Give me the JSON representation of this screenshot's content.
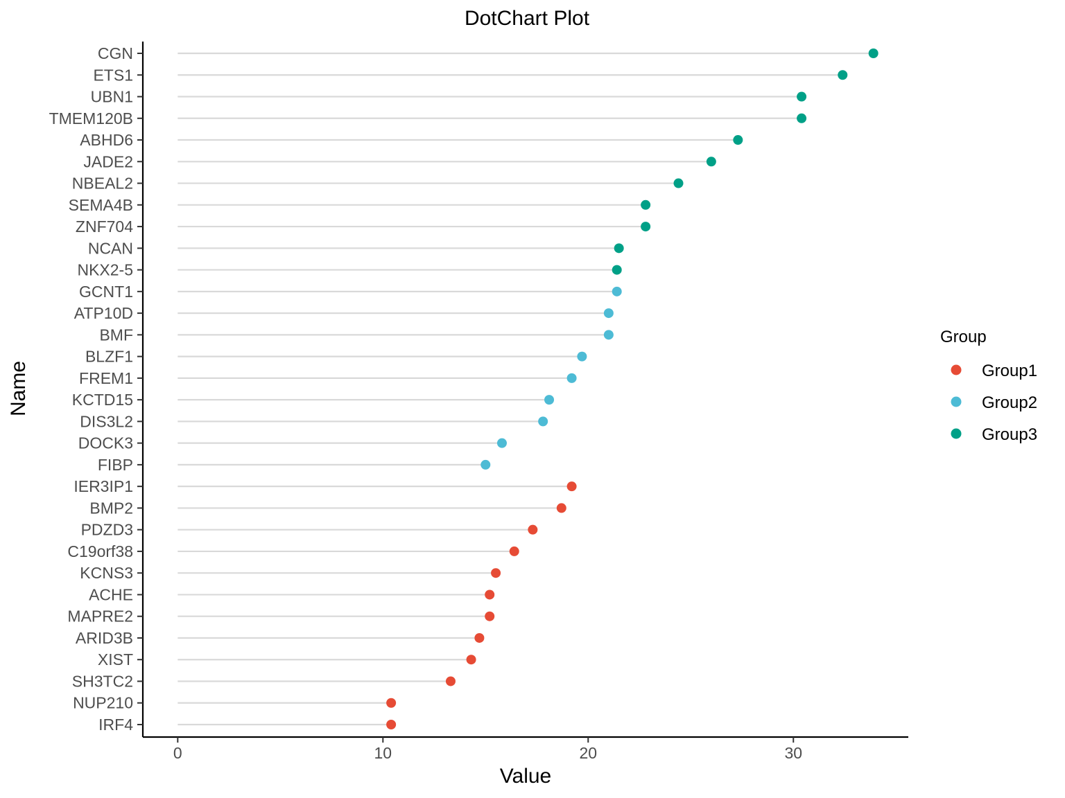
{
  "chart_data": {
    "type": "scatter",
    "title": "DotChart Plot",
    "xlabel": "Value",
    "ylabel": "Name",
    "xlim": [
      -1.7,
      35.6
    ],
    "x_ticks": [
      0,
      10,
      20,
      30
    ],
    "grid": false,
    "legend": {
      "title": "Group",
      "position": "right",
      "entries": [
        {
          "name": "Group1",
          "color": "#E64B35"
        },
        {
          "name": "Group2",
          "color": "#4DBBD5"
        },
        {
          "name": "Group3",
          "color": "#00A087"
        }
      ]
    },
    "segment_color": "#d9d9d9",
    "points": [
      {
        "name": "CGN",
        "value": 33.9,
        "group": "Group3"
      },
      {
        "name": "ETS1",
        "value": 32.4,
        "group": "Group3"
      },
      {
        "name": "UBN1",
        "value": 30.4,
        "group": "Group3"
      },
      {
        "name": "TMEM120B",
        "value": 30.4,
        "group": "Group3"
      },
      {
        "name": "ABHD6",
        "value": 27.3,
        "group": "Group3"
      },
      {
        "name": "JADE2",
        "value": 26.0,
        "group": "Group3"
      },
      {
        "name": "NBEAL2",
        "value": 24.4,
        "group": "Group3"
      },
      {
        "name": "SEMA4B",
        "value": 22.8,
        "group": "Group3"
      },
      {
        "name": "ZNF704",
        "value": 22.8,
        "group": "Group3"
      },
      {
        "name": "NCAN",
        "value": 21.5,
        "group": "Group3"
      },
      {
        "name": "NKX2-5",
        "value": 21.4,
        "group": "Group3"
      },
      {
        "name": "GCNT1",
        "value": 21.4,
        "group": "Group2"
      },
      {
        "name": "ATP10D",
        "value": 21.0,
        "group": "Group2"
      },
      {
        "name": "BMF",
        "value": 21.0,
        "group": "Group2"
      },
      {
        "name": "BLZF1",
        "value": 19.7,
        "group": "Group2"
      },
      {
        "name": "FREM1",
        "value": 19.2,
        "group": "Group2"
      },
      {
        "name": "KCTD15",
        "value": 18.1,
        "group": "Group2"
      },
      {
        "name": "DIS3L2",
        "value": 17.8,
        "group": "Group2"
      },
      {
        "name": "DOCK3",
        "value": 15.8,
        "group": "Group2"
      },
      {
        "name": "FIBP",
        "value": 15.0,
        "group": "Group2"
      },
      {
        "name": "IER3IP1",
        "value": 19.2,
        "group": "Group1"
      },
      {
        "name": "BMP2",
        "value": 18.7,
        "group": "Group1"
      },
      {
        "name": "PDZD3",
        "value": 17.3,
        "group": "Group1"
      },
      {
        "name": "C19orf38",
        "value": 16.4,
        "group": "Group1"
      },
      {
        "name": "KCNS3",
        "value": 15.5,
        "group": "Group1"
      },
      {
        "name": "ACHE",
        "value": 15.2,
        "group": "Group1"
      },
      {
        "name": "MAPRE2",
        "value": 15.2,
        "group": "Group1"
      },
      {
        "name": "ARID3B",
        "value": 14.7,
        "group": "Group1"
      },
      {
        "name": "XIST",
        "value": 14.3,
        "group": "Group1"
      },
      {
        "name": "SH3TC2",
        "value": 13.3,
        "group": "Group1"
      },
      {
        "name": "NUP210",
        "value": 10.4,
        "group": "Group1"
      },
      {
        "name": "IRF4",
        "value": 10.4,
        "group": "Group1"
      }
    ]
  }
}
